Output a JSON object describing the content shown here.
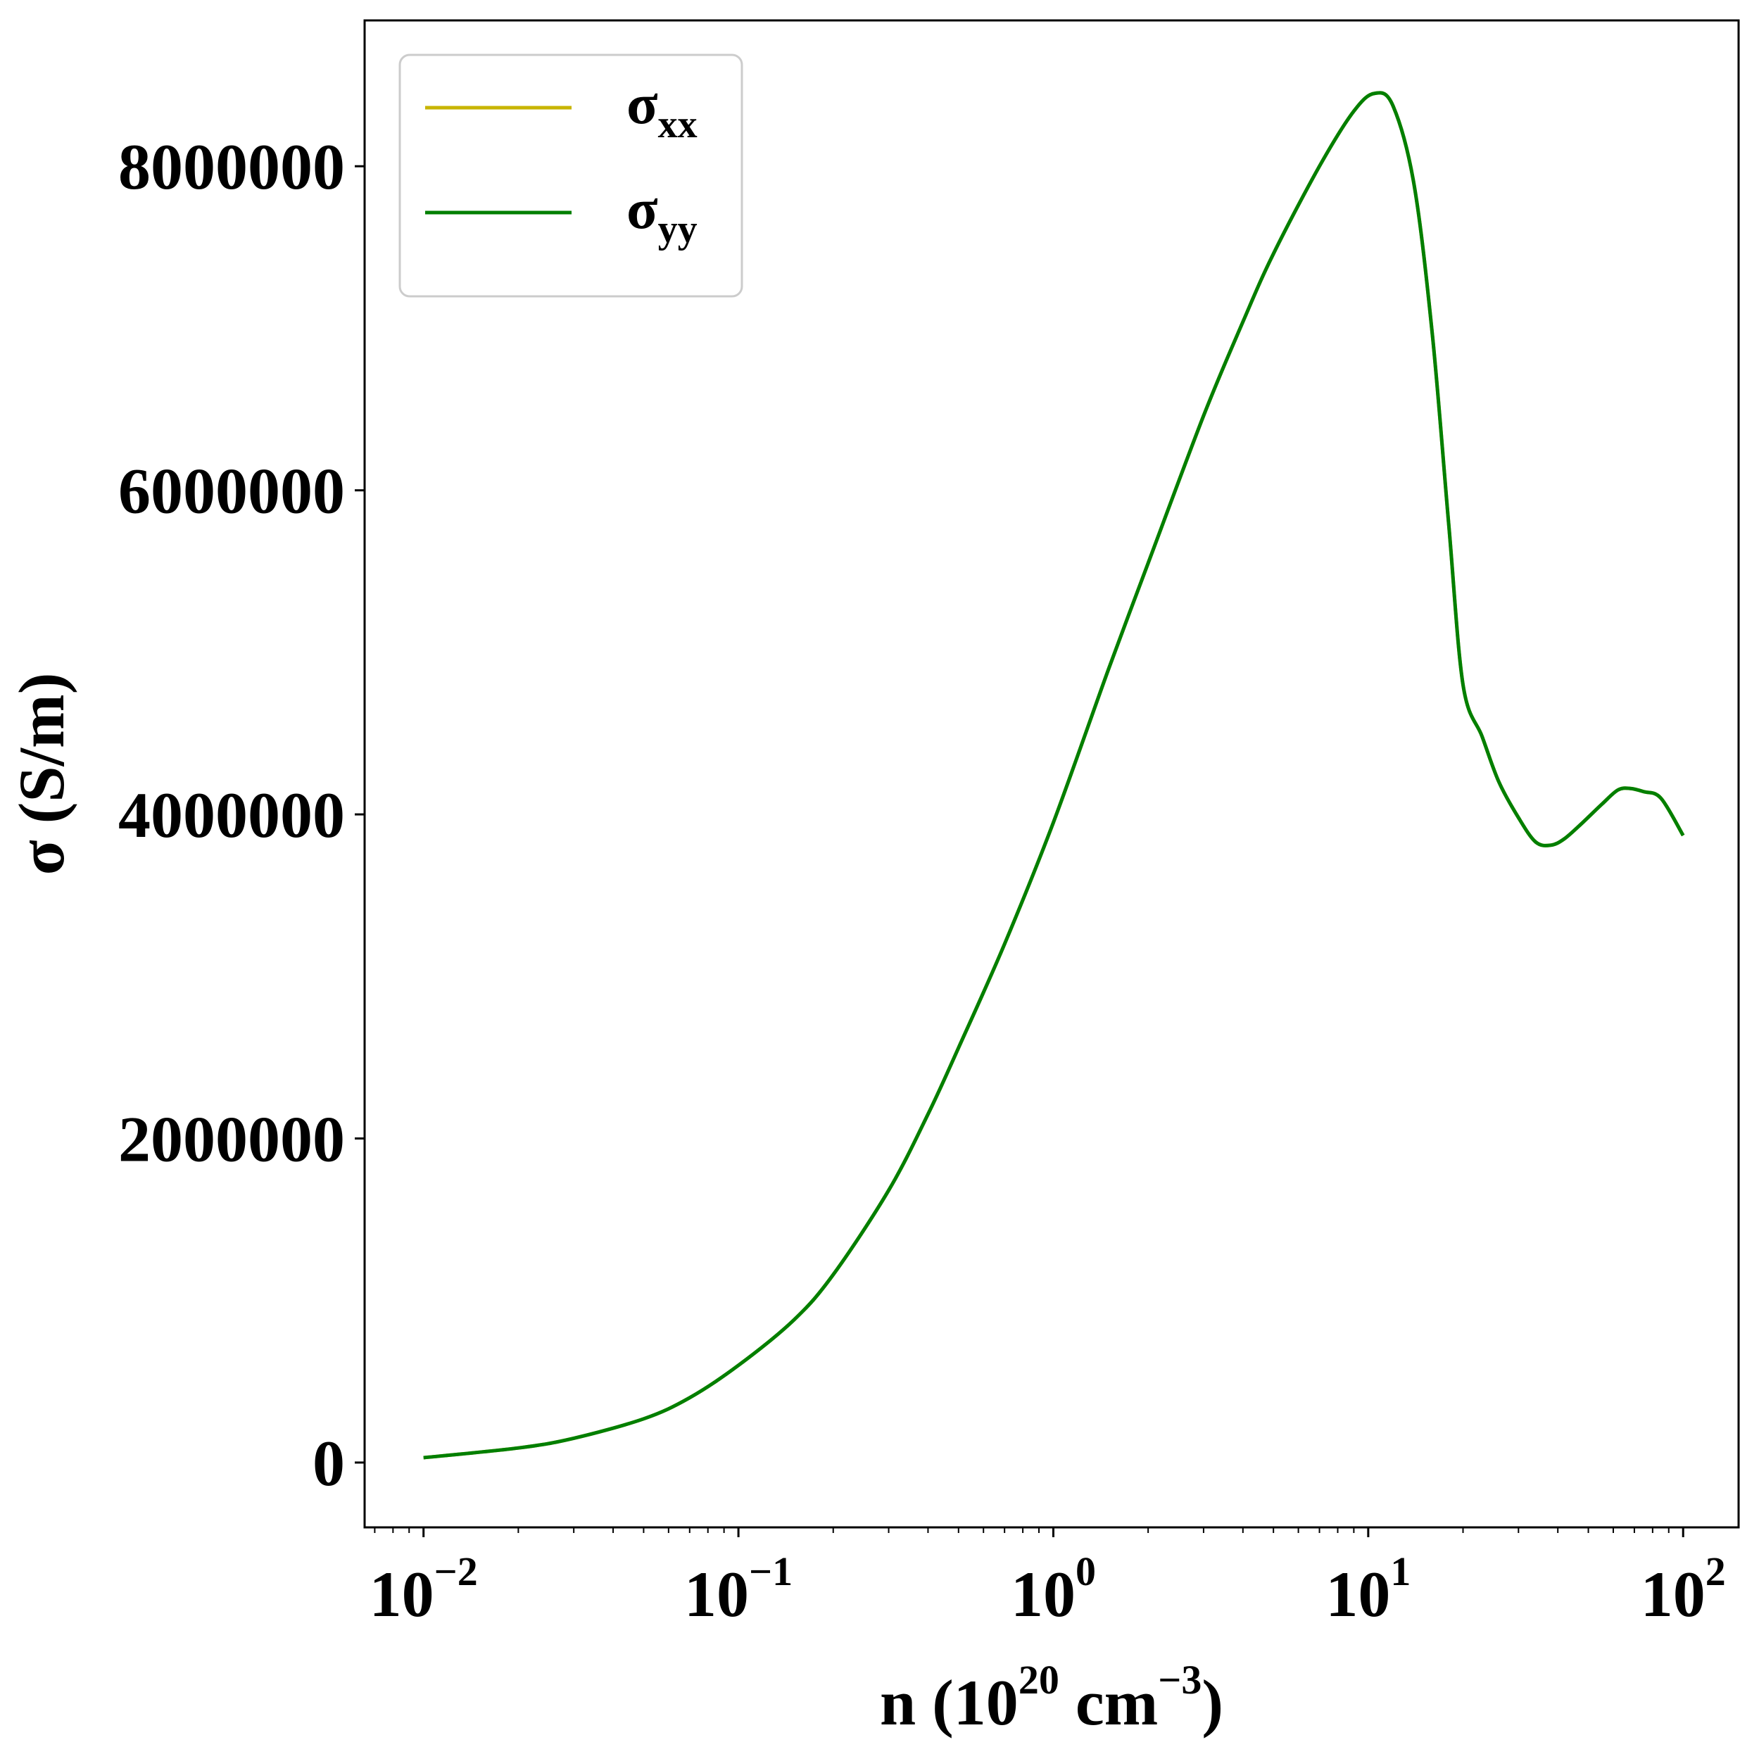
{
  "chart_data": {
    "type": "line",
    "xlabel": {
      "base": "n (10",
      "sup1": "20",
      "mid": " cm",
      "sup2": "−3",
      "end": ")"
    },
    "ylabel": "σ (S/m)",
    "x_scale": "log",
    "xlim": [
      0.0065,
      150
    ],
    "ylim": [
      -400000,
      8900000
    ],
    "x_ticks": [
      {
        "value": 0.01,
        "base": "10",
        "exp": "−2"
      },
      {
        "value": 0.1,
        "base": "10",
        "exp": "−1"
      },
      {
        "value": 1,
        "base": "10",
        "exp": "0"
      },
      {
        "value": 10,
        "base": "10",
        "exp": "1"
      },
      {
        "value": 100,
        "base": "10",
        "exp": "2"
      }
    ],
    "y_ticks": [
      {
        "value": 0,
        "label": "0"
      },
      {
        "value": 2000000,
        "label": "2000000"
      },
      {
        "value": 4000000,
        "label": "4000000"
      },
      {
        "value": 6000000,
        "label": "6000000"
      },
      {
        "value": 8000000,
        "label": "8000000"
      }
    ],
    "grid": false,
    "legend_position": "top-left",
    "series": [
      {
        "name": "σ",
        "sub": "xx",
        "color": "#c8b400",
        "x": [
          0.01,
          0.02,
          0.03,
          0.05,
          0.07,
          0.1,
          0.15,
          0.2,
          0.3,
          0.4,
          0.5,
          0.7,
          1.0,
          1.5,
          2.0,
          3.0,
          4.0,
          5.0,
          7.0,
          9.0,
          10.5,
          12.0,
          14.0,
          16.0,
          18.0,
          20.0,
          23.0,
          26.0,
          30.0,
          34.0,
          38.0,
          42.0,
          48.0,
          55.0,
          62.0,
          68.0,
          75.0,
          85.0,
          100.0
        ],
        "y": [
          30000,
          90000,
          150000,
          270000,
          400000,
          600000,
          880000,
          1160000,
          1680000,
          2150000,
          2560000,
          3200000,
          3950000,
          4900000,
          5550000,
          6460000,
          7040000,
          7460000,
          8000000,
          8340000,
          8450000,
          8370000,
          7880000,
          6950000,
          5800000,
          4800000,
          4480000,
          4200000,
          3980000,
          3830000,
          3810000,
          3850000,
          3950000,
          4060000,
          4150000,
          4160000,
          4140000,
          4100000,
          3870000
        ]
      },
      {
        "name": "σ",
        "sub": "yy",
        "color": "#007f00",
        "x": [
          0.01,
          0.02,
          0.03,
          0.05,
          0.07,
          0.1,
          0.15,
          0.2,
          0.3,
          0.4,
          0.5,
          0.7,
          1.0,
          1.5,
          2.0,
          3.0,
          4.0,
          5.0,
          7.0,
          9.0,
          10.5,
          12.0,
          14.0,
          16.0,
          18.0,
          20.0,
          23.0,
          26.0,
          30.0,
          34.0,
          38.0,
          42.0,
          48.0,
          55.0,
          62.0,
          68.0,
          75.0,
          85.0,
          100.0
        ],
        "y": [
          30000,
          90000,
          150000,
          270000,
          400000,
          600000,
          880000,
          1160000,
          1680000,
          2150000,
          2560000,
          3200000,
          3950000,
          4900000,
          5550000,
          6460000,
          7040000,
          7460000,
          8000000,
          8340000,
          8450000,
          8370000,
          7880000,
          6950000,
          5800000,
          4800000,
          4480000,
          4200000,
          3980000,
          3830000,
          3810000,
          3850000,
          3950000,
          4060000,
          4150000,
          4160000,
          4140000,
          4100000,
          3870000
        ]
      }
    ]
  }
}
